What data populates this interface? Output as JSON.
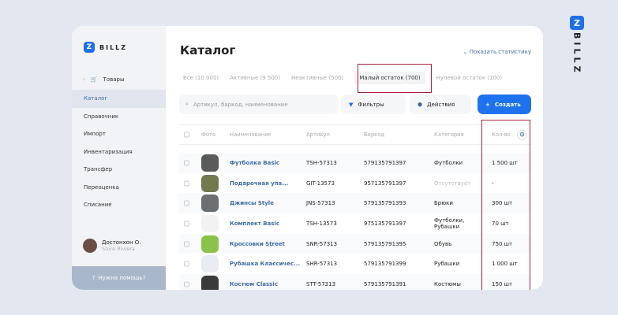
{
  "brand": {
    "logo_letter": "Z",
    "name": "BILLZ"
  },
  "sidebar": {
    "back_label": "Товары",
    "items": [
      {
        "label": "Каталог",
        "active": true
      },
      {
        "label": "Справочник"
      },
      {
        "label": "Импорт"
      },
      {
        "label": "Инвентаризация"
      },
      {
        "label": "Трансфер"
      },
      {
        "label": "Переоценка"
      },
      {
        "label": "Списание"
      }
    ],
    "user": {
      "name": "Достонхон О.",
      "store": "Store Riviera"
    },
    "help": "Нужна помощь?"
  },
  "header": {
    "title": "Каталог",
    "stats_link": "Показать статистику"
  },
  "tabs": [
    {
      "label": "Все (10 000)"
    },
    {
      "label": "Активные (9 500)"
    },
    {
      "label": "Неактивные (500)"
    },
    {
      "label": "Малый остаток (700)",
      "selected": true
    },
    {
      "label": "Нулевой остаток (100)"
    }
  ],
  "toolbar": {
    "search_placeholder": "Артикул, баркод, наименование",
    "filters": "Фильтры",
    "actions": "Действия",
    "create": "Создать"
  },
  "table": {
    "columns": [
      "Фото",
      "Наименование",
      "Артикул",
      "Баркод",
      "Категория",
      "Кол-во"
    ],
    "rows": [
      {
        "name": "Футболка Basic",
        "sku": "TSH-57313",
        "barcode": "579135791397",
        "category": "Футболки",
        "qty": "1 500 шт"
      },
      {
        "name": "Подарочная упа...",
        "sku": "GIT-13573",
        "barcode": "957135791397",
        "category": "Отсутствует",
        "qty": "-"
      },
      {
        "name": "Джинсы Style",
        "sku": "JNS-57313",
        "barcode": "579135791393",
        "category": "Брюки",
        "qty": "300 шт"
      },
      {
        "name": "Комплект Basic",
        "sku": "TSH-13573",
        "barcode": "975135791397",
        "category": "Футболки, Рубашки",
        "qty": "70 шт"
      },
      {
        "name": "Кроссовки Street",
        "sku": "SNR-57313",
        "barcode": "579135791395",
        "category": "Обувь",
        "qty": "750 шт"
      },
      {
        "name": "Рубашка Классичес...",
        "sku": "SHR-57313",
        "barcode": "579135791399",
        "category": "Рубашки",
        "qty": "1 000 шт"
      },
      {
        "name": "Костюм Classic",
        "sku": "STT-57313",
        "barcode": "579135791391",
        "category": "Костюмы",
        "qty": "150 шт"
      }
    ]
  },
  "colors": {
    "accent": "#1f72ee",
    "highlight": "#a8203f"
  }
}
